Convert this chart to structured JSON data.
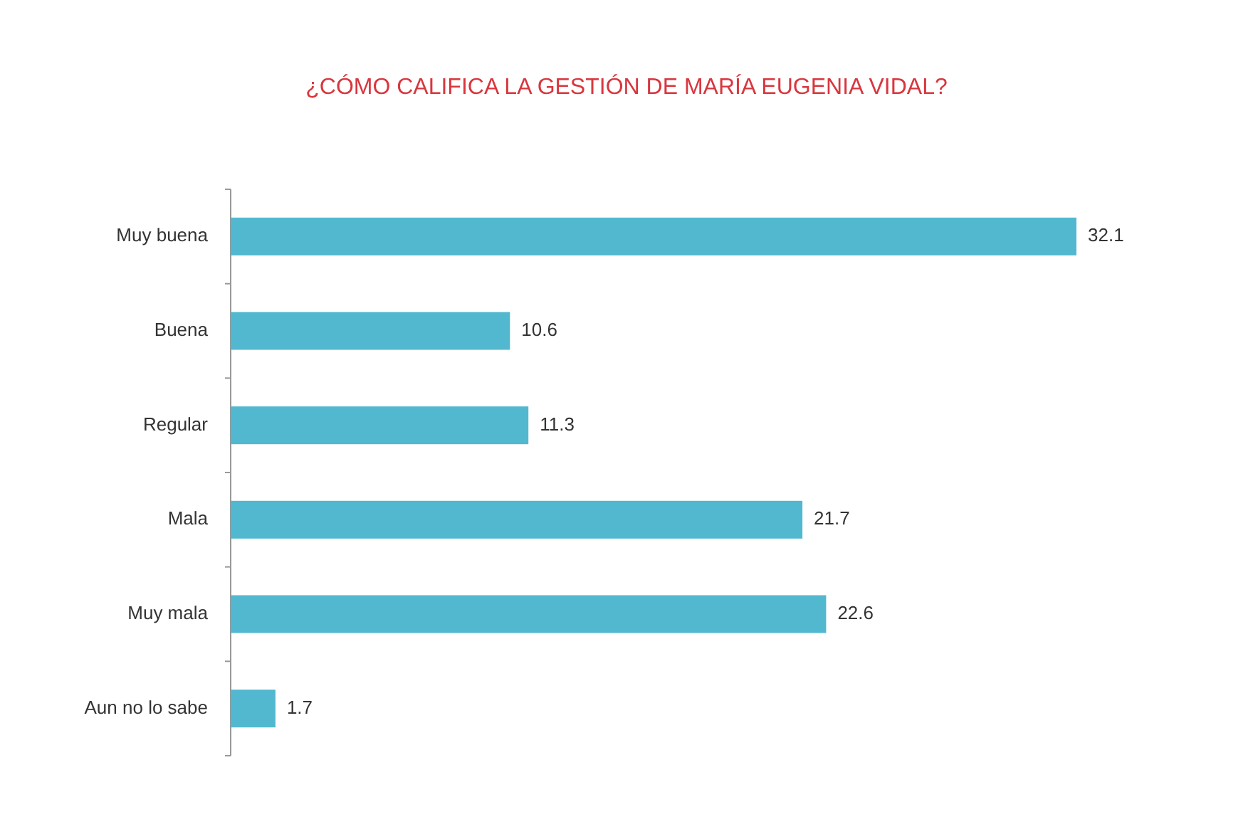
{
  "chart_data": {
    "type": "bar",
    "orientation": "horizontal",
    "title": "¿CÓMO CALIFICA LA GESTIÓN DE MARÍA EUGENIA VIDAL?",
    "categories": [
      "Muy buena",
      "Buena",
      "Regular",
      "Mala",
      "Muy mala",
      "Aun no lo sabe"
    ],
    "values": [
      32.1,
      10.6,
      11.3,
      21.7,
      22.6,
      1.7
    ],
    "color": "#52b8cf",
    "data_labels": true
  }
}
